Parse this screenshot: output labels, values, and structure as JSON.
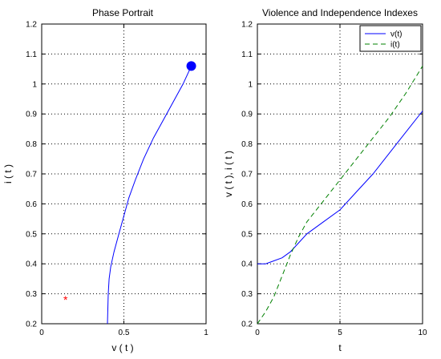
{
  "chart_data": [
    {
      "type": "line",
      "title": "Phase Portrait",
      "xlabel": "v ( t )",
      "ylabel": "i ( t )",
      "xlim": [
        0,
        1
      ],
      "ylim": [
        0.2,
        1.2
      ],
      "xticks": [
        0,
        0.5,
        1
      ],
      "xtick_labels": [
        "0",
        "0.5",
        "1"
      ],
      "yticks": [
        0.2,
        0.3,
        0.4,
        0.5,
        0.6,
        0.7,
        0.8,
        0.9,
        1.0,
        1.1,
        1.2
      ],
      "ytick_labels": [
        "0.2",
        "0.3",
        "0.4",
        "0.5",
        "0.6",
        "0.7",
        "0.8",
        "0.9",
        "1",
        "1.1",
        "1.2"
      ],
      "grid": true,
      "line_color": "#0000ff",
      "series": [
        {
          "x": [
            0.4,
            0.405,
            0.41,
            0.42,
            0.44,
            0.47,
            0.5,
            0.53,
            0.57,
            0.62,
            0.68,
            0.74,
            0.8,
            0.86,
            0.91
          ],
          "y": [
            0.2,
            0.3,
            0.35,
            0.39,
            0.44,
            0.5,
            0.56,
            0.62,
            0.68,
            0.75,
            0.82,
            0.88,
            0.94,
            1.0,
            1.06
          ]
        }
      ],
      "endpoint_marker": {
        "x": 0.91,
        "y": 1.06,
        "color": "#0000ff"
      },
      "star_marker": {
        "x": 0.145,
        "y": 0.28,
        "color": "#ff0000",
        "symbol": "*"
      }
    },
    {
      "type": "line",
      "title": "Violence and Independence Indexes",
      "xlabel": "t",
      "ylabel": "v ( t ), i ( t )",
      "xlim": [
        0,
        10
      ],
      "ylim": [
        0.2,
        1.2
      ],
      "xticks": [
        0,
        5,
        10
      ],
      "xtick_labels": [
        "0",
        "5",
        "10"
      ],
      "yticks": [
        0.2,
        0.3,
        0.4,
        0.5,
        0.6,
        0.7,
        0.8,
        0.9,
        1.0,
        1.1,
        1.2
      ],
      "ytick_labels": [
        "0.2",
        "0.3",
        "0.4",
        "0.5",
        "0.6",
        "0.7",
        "0.8",
        "0.9",
        "1",
        "1.1",
        "1.2"
      ],
      "grid": true,
      "legend": "top-right",
      "series": [
        {
          "name": "v(t)",
          "color": "#0000ff",
          "dash": "solid",
          "x": [
            0,
            0.5,
            1,
            1.5,
            2,
            2.5,
            3,
            4,
            5,
            6,
            7,
            8,
            9,
            10
          ],
          "y": [
            0.4,
            0.4,
            0.41,
            0.42,
            0.44,
            0.47,
            0.5,
            0.54,
            0.58,
            0.64,
            0.7,
            0.77,
            0.84,
            0.91
          ]
        },
        {
          "name": "i(t)",
          "color": "#008000",
          "dash": "dashed",
          "x": [
            0,
            0.5,
            1,
            1.5,
            2,
            2.5,
            3,
            4,
            5,
            6,
            7,
            8,
            9,
            10
          ],
          "y": [
            0.2,
            0.24,
            0.29,
            0.36,
            0.43,
            0.49,
            0.54,
            0.61,
            0.68,
            0.75,
            0.82,
            0.89,
            0.97,
            1.06
          ]
        }
      ]
    }
  ]
}
